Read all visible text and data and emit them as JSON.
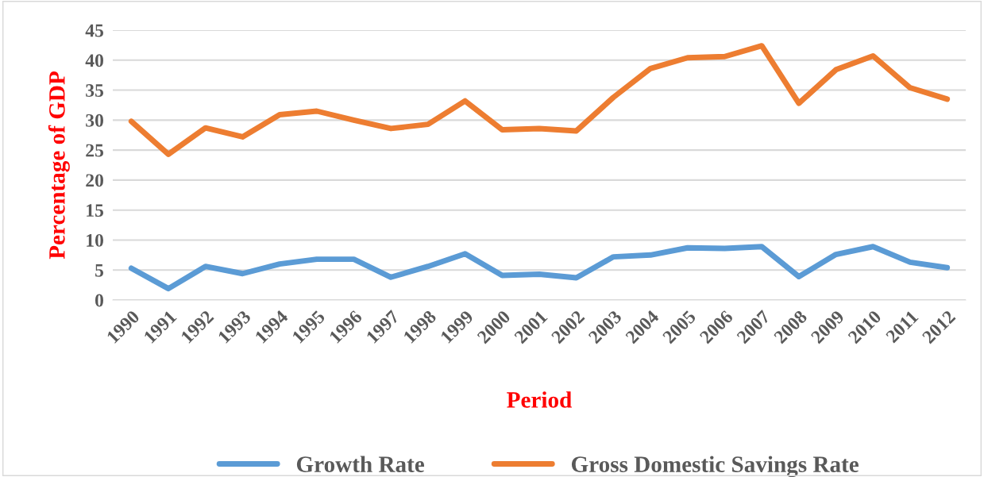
{
  "chart_data": {
    "type": "line",
    "xlabel": "Period",
    "ylabel": "Percentage of GDP",
    "categories": [
      "1990",
      "1991",
      "1992",
      "1993",
      "1994",
      "1995",
      "1996",
      "1997",
      "1998",
      "1999",
      "2000",
      "2001",
      "2002",
      "2003",
      "2004",
      "2005",
      "2006",
      "2007",
      "2008",
      "2009",
      "2010",
      "2011",
      "2012"
    ],
    "series": [
      {
        "name": "Growth Rate",
        "color": "#5b9bd5",
        "values": [
          5.3,
          1.9,
          5.6,
          4.4,
          6.0,
          6.8,
          6.8,
          3.8,
          5.6,
          7.7,
          4.1,
          4.3,
          3.7,
          7.2,
          7.5,
          8.7,
          8.6,
          8.9,
          3.9,
          7.6,
          8.9,
          6.3,
          5.4
        ]
      },
      {
        "name": "Gross Domestic Savings Rate",
        "color": "#ed7d31",
        "values": [
          29.8,
          24.3,
          28.7,
          27.2,
          30.9,
          31.5,
          30.0,
          28.6,
          29.3,
          33.2,
          28.4,
          28.6,
          28.2,
          33.8,
          38.6,
          40.4,
          40.6,
          42.4,
          32.8,
          38.4,
          40.7,
          35.4,
          33.5
        ]
      }
    ],
    "ylim": [
      0,
      45
    ],
    "yticks": [
      0,
      5,
      10,
      15,
      20,
      25,
      30,
      35,
      40,
      45
    ],
    "grid": "y",
    "legend": "bottom",
    "marker": "none",
    "line_style": "solid"
  }
}
